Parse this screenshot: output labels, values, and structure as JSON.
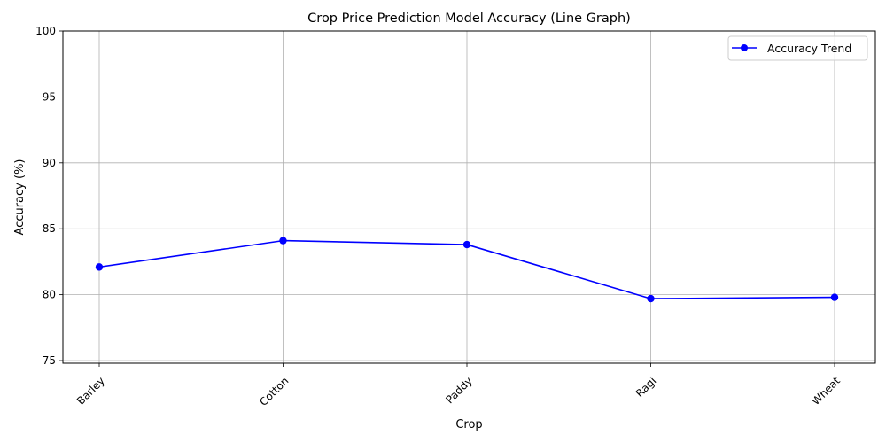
{
  "chart_data": {
    "type": "line",
    "title": "Crop Price Prediction Model Accuracy (Line Graph)",
    "xlabel": "Crop",
    "ylabel": "Accuracy (%)",
    "categories": [
      "Barley",
      "Cotton",
      "Paddy",
      "Ragi",
      "Wheat"
    ],
    "series": [
      {
        "name": "Accuracy Trend",
        "values": [
          82.1,
          84.1,
          83.8,
          79.7,
          79.8
        ],
        "color": "#0000ff"
      }
    ],
    "ylim": [
      74.8,
      100
    ],
    "yticks": [
      75,
      80,
      85,
      90,
      95,
      100
    ],
    "ytick_labels": [
      "75",
      "80",
      "85",
      "90",
      "95",
      "100"
    ],
    "grid": true,
    "legend_position": "top-right",
    "xtick_rotation_deg": 45
  }
}
